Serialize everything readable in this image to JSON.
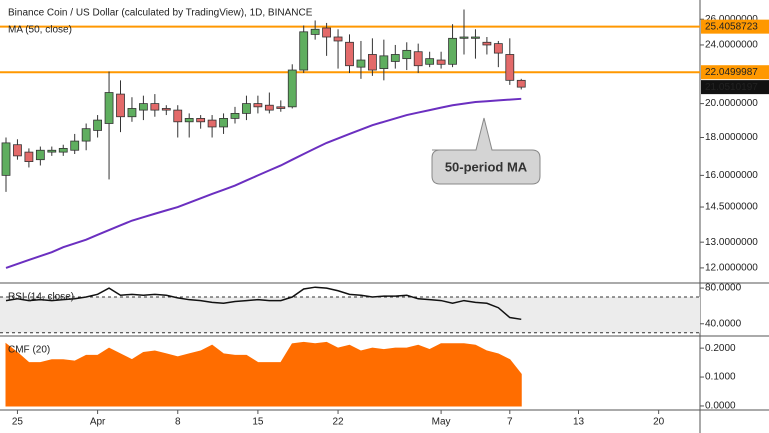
{
  "chart_data": [
    {
      "type": "candlestick",
      "title": "Binance Coin / US Dollar (calculated by TradingView), 1D, BINANCE",
      "categories": [
        null,
        "25",
        null,
        null,
        null,
        null,
        null,
        null,
        "Apr",
        null,
        null,
        null,
        null,
        null,
        null,
        "8",
        null,
        null,
        null,
        null,
        null,
        null,
        "15",
        null,
        null,
        null,
        null,
        null,
        null,
        "22",
        null,
        null,
        null,
        null,
        null,
        null,
        null,
        null,
        "May",
        null,
        null,
        null,
        null,
        null,
        "7",
        null,
        null,
        null,
        null,
        null,
        "13",
        null,
        null,
        null,
        null,
        null,
        null,
        "20",
        null,
        null,
        null
      ],
      "open": [
        16.0,
        17.6,
        17.2,
        16.8,
        17.2,
        17.2,
        17.3,
        17.8,
        18.4,
        18.8,
        20.6,
        19.2,
        19.6,
        20.0,
        19.7,
        19.6,
        18.9,
        19.1,
        19.0,
        18.6,
        19.1,
        19.4,
        20.0,
        19.9,
        19.8,
        19.8,
        22.2,
        24.8,
        25.3,
        24.6,
        24.2,
        22.4,
        23.3,
        22.3,
        22.8,
        23.0,
        23.5,
        22.6,
        22.9,
        22.6,
        24.5,
        24.5,
        24.2,
        24.1,
        23.3,
        21.5,
        null,
        null,
        null,
        null,
        null,
        null,
        null,
        null,
        null,
        null,
        null,
        null,
        null,
        null,
        null
      ],
      "high": [
        18.0,
        17.9,
        17.4,
        17.5,
        17.5,
        17.6,
        18.2,
        18.8,
        19.3,
        22.1,
        21.5,
        20.4,
        20.5,
        20.6,
        19.9,
        19.9,
        19.4,
        19.3,
        19.3,
        19.4,
        19.8,
        20.5,
        20.5,
        20.7,
        20.2,
        22.6,
        25.5,
        25.9,
        25.7,
        25.2,
        24.8,
        24.3,
        24.5,
        24.4,
        24.0,
        24.2,
        24.1,
        23.5,
        23.5,
        25.6,
        26.8,
        25.2,
        24.6,
        24.3,
        24.5,
        21.6,
        null,
        null,
        null,
        null,
        null,
        null,
        null,
        null,
        null,
        null,
        null,
        null,
        null,
        null,
        null
      ],
      "low": [
        15.2,
        16.8,
        16.4,
        16.5,
        17.0,
        17.0,
        17.1,
        17.3,
        18.0,
        15.8,
        18.3,
        18.9,
        19.0,
        19.2,
        19.3,
        18.0,
        18.0,
        18.5,
        18.0,
        18.2,
        18.8,
        19.0,
        19.4,
        19.4,
        19.5,
        19.7,
        22.0,
        24.4,
        23.2,
        22.3,
        22.0,
        21.6,
        21.8,
        21.5,
        22.3,
        22.2,
        22.0,
        22.4,
        22.3,
        22.4,
        23.3,
        23.0,
        23.3,
        22.4,
        21.2,
        20.9,
        null,
        null,
        null,
        null,
        null,
        null,
        null,
        null,
        null,
        null,
        null,
        null,
        null,
        null,
        null
      ],
      "close": [
        17.7,
        17.0,
        16.7,
        17.3,
        17.3,
        17.4,
        17.8,
        18.5,
        19.0,
        20.7,
        19.2,
        19.7,
        20.0,
        19.6,
        19.6,
        18.9,
        19.1,
        18.9,
        18.6,
        19.1,
        19.4,
        20.0,
        19.8,
        19.6,
        19.7,
        22.2,
        25.0,
        25.2,
        24.6,
        24.3,
        22.5,
        22.9,
        22.2,
        23.2,
        23.3,
        23.6,
        22.5,
        23.0,
        22.6,
        24.5,
        24.6,
        24.6,
        24.0,
        23.4,
        21.5,
        21.0510197,
        null,
        null,
        null,
        null,
        null,
        null,
        null,
        null,
        null,
        null,
        null,
        null,
        null,
        null,
        null
      ],
      "up_color": "#5fae5f",
      "down_color": "#e36a6a",
      "series": [
        {
          "name": "MA (50, close)",
          "color": "#6b2fc0",
          "values": [
            12.0,
            12.15,
            12.3,
            12.45,
            12.6,
            12.8,
            12.95,
            13.1,
            13.3,
            13.5,
            13.7,
            13.9,
            14.05,
            14.2,
            14.35,
            14.5,
            14.7,
            14.9,
            15.1,
            15.3,
            15.5,
            15.75,
            16.0,
            16.25,
            16.5,
            16.8,
            17.1,
            17.4,
            17.7,
            17.95,
            18.2,
            18.45,
            18.7,
            18.9,
            19.1,
            19.3,
            19.45,
            19.6,
            19.75,
            19.9,
            20.0,
            20.1,
            20.15,
            20.2,
            20.25,
            20.3,
            null,
            null,
            null,
            null,
            null,
            null,
            null,
            null,
            null,
            null,
            null,
            null,
            null,
            null,
            null
          ]
        }
      ],
      "log_scale": true,
      "ylim": [
        11.45,
        27.6
      ],
      "yticks": [
        {
          "value": 26,
          "label": "26.0000000"
        },
        {
          "value": 24,
          "label": "24.0000000"
        },
        {
          "value": 20,
          "label": "20.0000000"
        },
        {
          "value": 18,
          "label": "18.0000000"
        },
        {
          "value": 16,
          "label": "16.0000000"
        },
        {
          "value": 14.5,
          "label": "14.5000000"
        },
        {
          "value": 13,
          "label": "13.0000000"
        },
        {
          "value": 12,
          "label": "12.0000000"
        }
      ],
      "hlines": [
        25.4058723,
        22.0499987
      ],
      "hline_color": "#ff9800",
      "annotation": "50-period MA"
    },
    {
      "type": "line",
      "series": [
        {
          "name": "RSI (14, close)",
          "color": "#111111",
          "values": [
            66,
            68,
            66,
            67,
            66,
            67,
            68,
            70,
            73,
            80,
            72,
            73,
            72,
            73,
            72,
            69,
            67,
            66,
            64,
            63,
            65,
            66,
            67,
            66,
            66,
            70,
            79,
            81,
            80,
            77,
            73,
            72,
            70,
            71,
            71,
            72,
            68,
            67,
            66,
            63,
            66,
            64,
            63,
            58,
            47,
            45,
            null,
            null,
            null,
            null,
            null,
            null,
            null,
            null,
            null,
            null,
            null,
            null,
            null,
            null,
            null
          ]
        }
      ],
      "ylim": [
        26.3,
        85.7
      ],
      "yticks": [
        {
          "value": 80,
          "label": "80.0000"
        },
        {
          "value": 40,
          "label": "40.0000"
        }
      ],
      "bands": [
        30,
        70
      ]
    },
    {
      "type": "area",
      "series": [
        {
          "name": "CMF (20)",
          "color": "#ff6d00",
          "values": [
            0.215,
            0.185,
            0.15,
            0.15,
            0.16,
            0.16,
            0.155,
            0.175,
            0.175,
            0.2,
            0.18,
            0.16,
            0.185,
            0.19,
            0.18,
            0.17,
            0.18,
            0.19,
            0.21,
            0.18,
            0.175,
            0.175,
            0.15,
            0.15,
            0.15,
            0.215,
            0.22,
            0.215,
            0.22,
            0.2,
            0.21,
            0.19,
            0.2,
            0.195,
            0.2,
            0.2,
            0.21,
            0.195,
            0.215,
            0.215,
            0.215,
            0.21,
            0.19,
            0.18,
            0.16,
            0.11,
            null,
            null,
            null,
            null,
            null,
            null,
            null,
            null,
            null,
            null,
            null,
            null,
            null,
            null,
            null
          ]
        }
      ],
      "ylim": [
        -0.014,
        0.242
      ],
      "yticks": [
        {
          "value": 0.2,
          "label": "0.2000"
        },
        {
          "value": 0.1,
          "label": "0.1000"
        },
        {
          "value": 0,
          "label": "0.0000"
        }
      ]
    }
  ]
}
